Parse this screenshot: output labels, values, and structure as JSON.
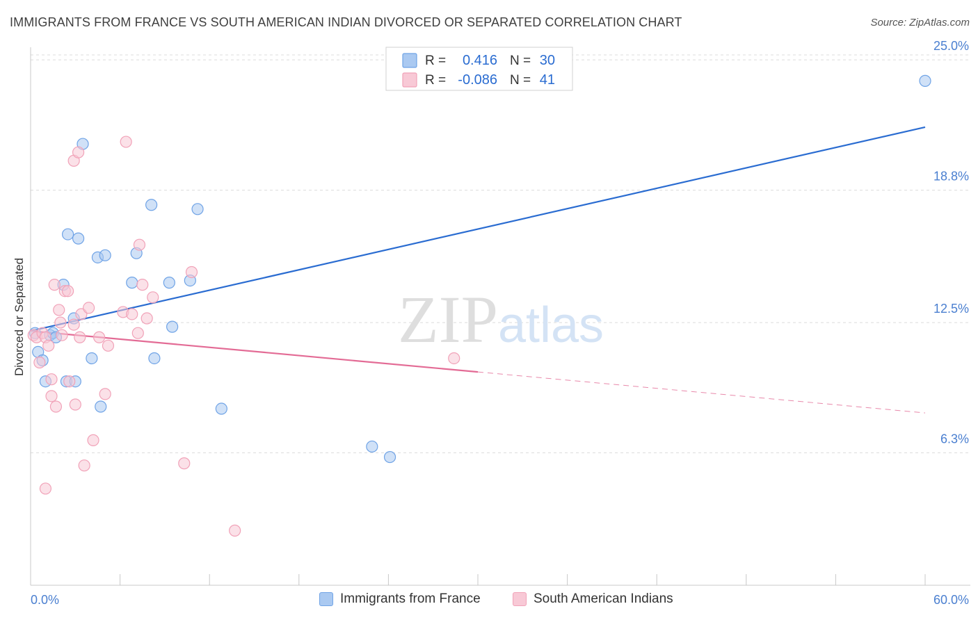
{
  "chart_data": {
    "type": "scatter",
    "title": "IMMIGRANTS FROM FRANCE VS SOUTH AMERICAN INDIAN DIVORCED OR SEPARATED CORRELATION CHART",
    "source": "Source: ZipAtlas.com",
    "ylabel": "Divorced or Separated",
    "xlim": [
      0,
      60
    ],
    "ylim": [
      0,
      25.6
    ],
    "x_tick_labels": [
      "0.0%",
      "60.0%"
    ],
    "y_ticks": [
      {
        "value": 25.0,
        "label": "25.0%"
      },
      {
        "value": 18.8,
        "label": "18.8%"
      },
      {
        "value": 12.5,
        "label": "12.5%"
      },
      {
        "value": 6.3,
        "label": "6.3%"
      }
    ],
    "watermark": "ZIPatlas",
    "legend": [
      {
        "r_label": "R =",
        "r_value": "0.416",
        "n_label": "N =",
        "n_value": "30"
      },
      {
        "r_label": "R =",
        "r_value": "-0.086",
        "n_label": "N =",
        "n_value": "41"
      }
    ],
    "series": [
      {
        "name": "Immigrants from France",
        "color": "#6fa3e6",
        "fill": "#aac9f1",
        "line_color": "#2a6cd1",
        "trend": {
          "x0": 0,
          "y0": 12.1,
          "x1": 60,
          "y1": 21.8,
          "solid_until": 60
        },
        "points": [
          [
            0.3,
            12.0
          ],
          [
            0.5,
            11.1
          ],
          [
            0.8,
            10.7
          ],
          [
            1.0,
            9.7
          ],
          [
            1.3,
            11.9
          ],
          [
            1.5,
            12.0
          ],
          [
            1.7,
            11.8
          ],
          [
            2.2,
            14.3
          ],
          [
            2.4,
            9.7
          ],
          [
            2.5,
            16.7
          ],
          [
            2.9,
            12.7
          ],
          [
            3.0,
            9.7
          ],
          [
            3.2,
            16.5
          ],
          [
            3.5,
            21.0
          ],
          [
            4.1,
            10.8
          ],
          [
            4.5,
            15.6
          ],
          [
            4.7,
            8.5
          ],
          [
            5.0,
            15.7
          ],
          [
            6.8,
            14.4
          ],
          [
            7.1,
            15.8
          ],
          [
            8.1,
            18.1
          ],
          [
            8.3,
            10.8
          ],
          [
            9.3,
            14.4
          ],
          [
            9.5,
            12.3
          ],
          [
            10.7,
            14.5
          ],
          [
            11.2,
            17.9
          ],
          [
            12.8,
            8.4
          ],
          [
            22.9,
            6.6
          ],
          [
            24.1,
            6.1
          ],
          [
            60.0,
            24.0
          ]
        ]
      },
      {
        "name": "South American Indians",
        "color": "#f1a2b8",
        "fill": "#f8c9d6",
        "line_color": "#e36b95",
        "trend": {
          "x0": 0,
          "y0": 12.1,
          "x1": 60,
          "y1": 8.2,
          "solid_until": 30.0
        },
        "points": [
          [
            0.2,
            11.9
          ],
          [
            0.4,
            11.8
          ],
          [
            0.6,
            10.6
          ],
          [
            0.8,
            12.0
          ],
          [
            1.0,
            11.8
          ],
          [
            1.2,
            11.4
          ],
          [
            1.4,
            9.0
          ],
          [
            1.4,
            9.8
          ],
          [
            1.6,
            14.3
          ],
          [
            1.7,
            8.5
          ],
          [
            1.9,
            13.1
          ],
          [
            2.0,
            12.5
          ],
          [
            2.1,
            11.9
          ],
          [
            2.3,
            14.0
          ],
          [
            2.5,
            14.0
          ],
          [
            2.6,
            9.7
          ],
          [
            2.9,
            12.4
          ],
          [
            2.9,
            20.2
          ],
          [
            3.0,
            8.6
          ],
          [
            3.2,
            20.6
          ],
          [
            3.3,
            11.8
          ],
          [
            3.4,
            12.9
          ],
          [
            3.6,
            5.7
          ],
          [
            3.9,
            13.2
          ],
          [
            4.2,
            6.9
          ],
          [
            4.6,
            11.8
          ],
          [
            5.0,
            9.1
          ],
          [
            5.2,
            11.4
          ],
          [
            6.2,
            13.0
          ],
          [
            6.4,
            21.1
          ],
          [
            6.8,
            12.9
          ],
          [
            7.2,
            12.0
          ],
          [
            7.3,
            16.2
          ],
          [
            7.5,
            14.3
          ],
          [
            7.8,
            12.7
          ],
          [
            8.2,
            13.7
          ],
          [
            10.3,
            5.8
          ],
          [
            10.8,
            14.9
          ],
          [
            13.7,
            2.6
          ],
          [
            28.4,
            10.8
          ],
          [
            1.0,
            4.6
          ]
        ]
      }
    ]
  }
}
